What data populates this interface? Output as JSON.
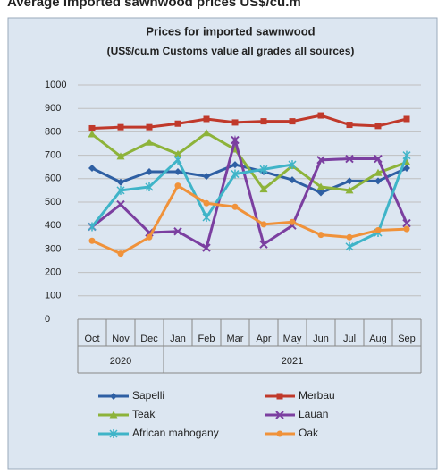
{
  "page_title": "Average imported sawnwood prices US$/cu.m",
  "chart_data": {
    "type": "line",
    "title": "Prices for imported sawnwood",
    "subtitle": "(US$/cu.m Customs value all grades all sources)",
    "categories": [
      "Oct",
      "Nov",
      "Dec",
      "Jan",
      "Feb",
      "Mar",
      "Apr",
      "May",
      "Jun",
      "Jul",
      "Aug",
      "Sep"
    ],
    "groups": [
      {
        "label": "2020",
        "span": 3
      },
      {
        "label": "2021",
        "span": 9
      }
    ],
    "ylim": [
      0,
      1000
    ],
    "yticks": [
      0,
      100,
      200,
      300,
      400,
      500,
      600,
      700,
      800,
      900,
      1000
    ],
    "grid": true,
    "series": [
      {
        "name": "Sapelli",
        "color": "#2e5fa3",
        "marker": "diamond",
        "values": [
          645,
          585,
          630,
          630,
          610,
          660,
          630,
          595,
          540,
          590,
          590,
          645
        ]
      },
      {
        "name": "Merbau",
        "color": "#c0392b",
        "marker": "square",
        "values": [
          815,
          820,
          820,
          835,
          855,
          840,
          845,
          845,
          870,
          830,
          825,
          855
        ]
      },
      {
        "name": "Teak",
        "color": "#8db33a",
        "marker": "triangle",
        "values": [
          790,
          695,
          755,
          705,
          795,
          725,
          555,
          655,
          565,
          550,
          625,
          670
        ]
      },
      {
        "name": "Lauan",
        "color": "#7b3fa0",
        "marker": "x",
        "values": [
          395,
          490,
          370,
          375,
          305,
          765,
          320,
          400,
          680,
          685,
          685,
          410
        ]
      },
      {
        "name": "African mahogany",
        "color": "#3fb4c8",
        "marker": "star",
        "values": [
          395,
          550,
          565,
          680,
          435,
          620,
          640,
          660,
          null,
          310,
          370,
          700
        ]
      },
      {
        "name": "Oak",
        "color": "#f0923a",
        "marker": "circle",
        "values": [
          335,
          280,
          350,
          570,
          495,
          480,
          405,
          415,
          360,
          350,
          380,
          385
        ]
      }
    ]
  }
}
